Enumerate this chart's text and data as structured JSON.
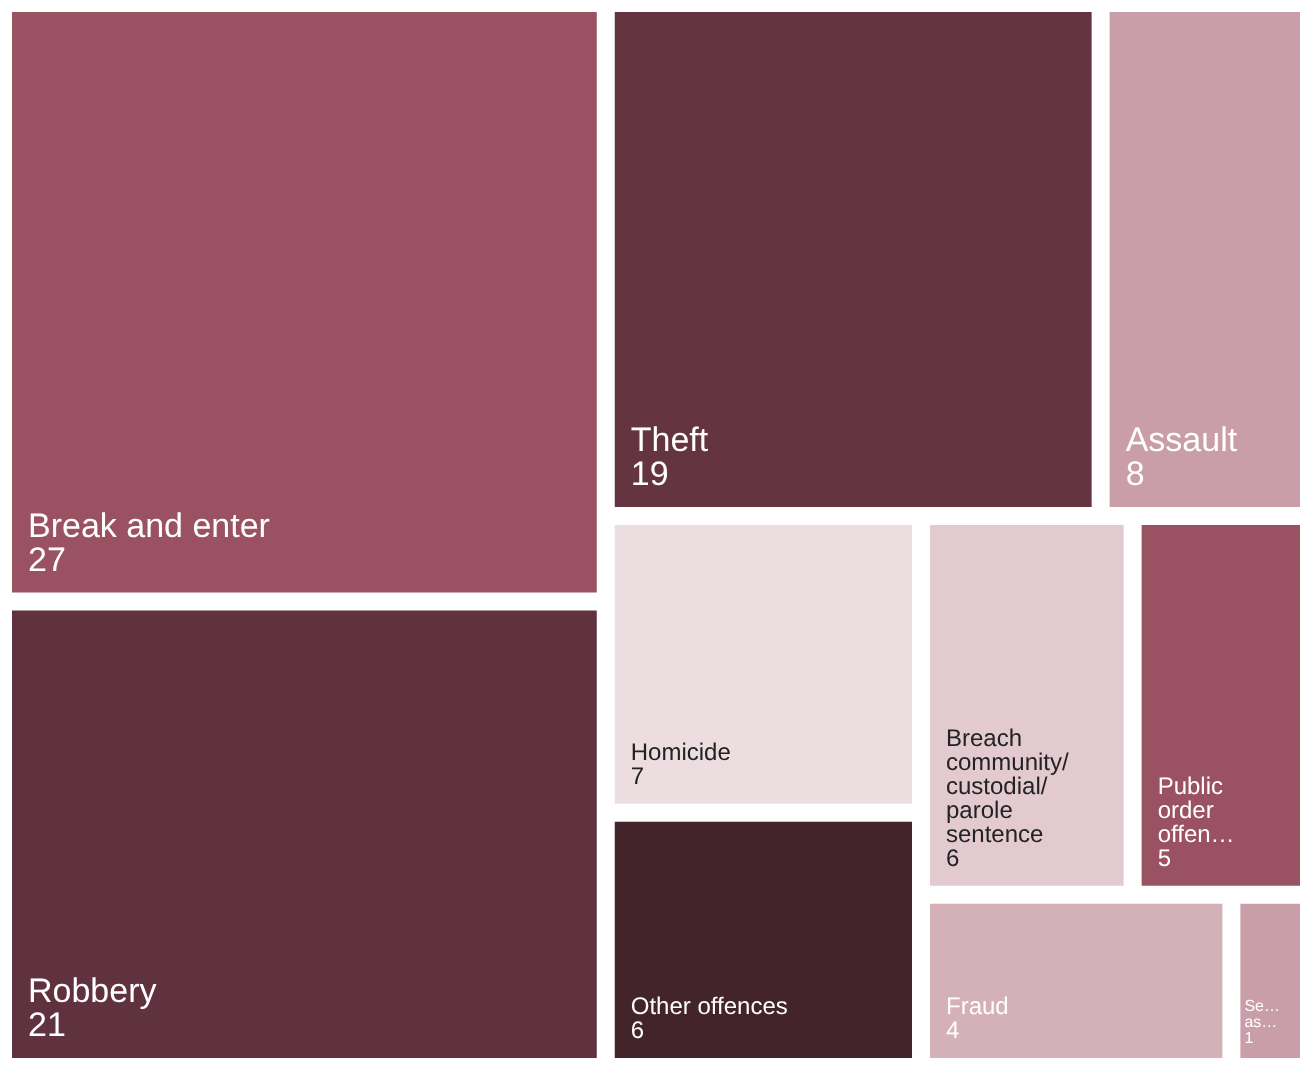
{
  "chart_data": {
    "type": "other",
    "categories": [
      "Break and enter",
      "Robbery",
      "Theft",
      "Assault",
      "Homicide",
      "Breach community/ custodial/parole sentence",
      "Other offences",
      "Public order offen…",
      "Fraud",
      "Se… as…"
    ],
    "values": [
      27,
      21,
      19,
      8,
      7,
      6,
      6,
      5,
      4,
      1
    ],
    "colors": [
      "#9a5262",
      "#60323f",
      "#643440",
      "#c99ea8",
      "#ecdde1",
      "#e3cad0",
      "#42242a",
      "#9a5262",
      "#d4b0b8",
      "#c99ea8"
    ],
    "data_labels": true
  }
}
